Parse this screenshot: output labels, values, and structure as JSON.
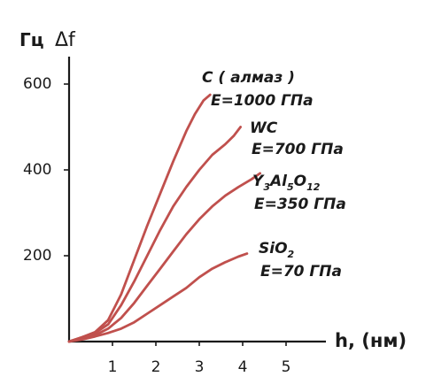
{
  "chart_data": {
    "type": "line",
    "ylabel_unit": "Гц",
    "ylabel_symbol": "Δf",
    "xlabel": "h, (нм)",
    "x_ticks": [
      1,
      2,
      3,
      4,
      5
    ],
    "y_ticks": [
      200,
      400,
      600
    ],
    "xlim": [
      0,
      5.6
    ],
    "ylim": [
      0,
      660
    ],
    "line_color": "#c0504d",
    "grid": false,
    "series": [
      {
        "label_line1_parts": [
          {
            "t": "C ( алмаз )"
          }
        ],
        "label_line2": "E=1000 ГПа",
        "x": [
          0,
          0.3,
          0.6,
          0.9,
          1.2,
          1.5,
          1.8,
          2.1,
          2.4,
          2.7,
          2.9,
          3.1,
          3.25
        ],
        "y": [
          0,
          10,
          22,
          50,
          110,
          190,
          270,
          345,
          420,
          490,
          530,
          562,
          575
        ]
      },
      {
        "label_line1_parts": [
          {
            "t": "WC"
          }
        ],
        "label_line2": "E=700 ГПа",
        "x": [
          0,
          0.3,
          0.6,
          0.9,
          1.2,
          1.5,
          1.8,
          2.1,
          2.4,
          2.7,
          3.0,
          3.3,
          3.6,
          3.8,
          3.95
        ],
        "y": [
          0,
          10,
          20,
          40,
          85,
          140,
          200,
          260,
          315,
          360,
          400,
          435,
          460,
          480,
          500
        ]
      },
      {
        "label_line1_parts": [
          {
            "t": "Y"
          },
          {
            "t": "3",
            "sub": true
          },
          {
            "t": "Al"
          },
          {
            "t": "5",
            "sub": true
          },
          {
            "t": "O"
          },
          {
            "t": "12",
            "sub": true
          }
        ],
        "label_line2": "E=350 ГПа",
        "x": [
          0,
          0.3,
          0.6,
          0.9,
          1.2,
          1.5,
          1.8,
          2.1,
          2.4,
          2.7,
          3.0,
          3.3,
          3.6,
          3.9,
          4.2,
          4.4
        ],
        "y": [
          0,
          8,
          15,
          30,
          55,
          90,
          130,
          170,
          210,
          250,
          285,
          315,
          340,
          360,
          378,
          392
        ]
      },
      {
        "label_line1_parts": [
          {
            "t": "SiO"
          },
          {
            "t": "2",
            "sub": true
          }
        ],
        "label_line2": "E=70 ГПа",
        "x": [
          0,
          0.3,
          0.6,
          0.9,
          1.2,
          1.5,
          1.8,
          2.1,
          2.4,
          2.7,
          3.0,
          3.3,
          3.6,
          3.9,
          4.1
        ],
        "y": [
          0,
          5,
          12,
          20,
          30,
          45,
          65,
          85,
          105,
          125,
          150,
          170,
          185,
          198,
          205
        ]
      }
    ]
  }
}
